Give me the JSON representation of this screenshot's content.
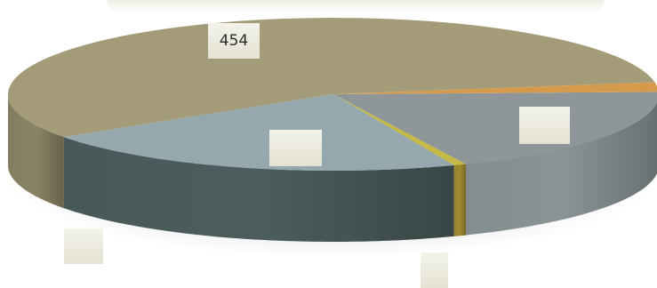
{
  "colors": {
    "tan": "#a49c78",
    "tan_dark": "#8a8465",
    "light_blue": "#94a8ad",
    "light_blue_dark": "#4c5d5d",
    "gray": "#8e969a",
    "gray_dark": "#8a9497",
    "orange": "#d59a4c",
    "orange_dark": "#d49b4a",
    "yellow": "#c5ba46",
    "yellow_dark": "#9f8a2f",
    "label_bg": "#eeede2"
  },
  "chart_data": {
    "type": "pie",
    "style": "3d",
    "slices": [
      {
        "value": 454,
        "label": "454",
        "color": "tan"
      },
      {
        "value": 172,
        "label": "",
        "color": "light_blue"
      },
      {
        "value": 5,
        "label": "",
        "color": "yellow"
      },
      {
        "value": 150,
        "label": "",
        "color": "gray"
      },
      {
        "value": 16,
        "label": "",
        "color": "orange"
      }
    ],
    "legend": "none"
  }
}
